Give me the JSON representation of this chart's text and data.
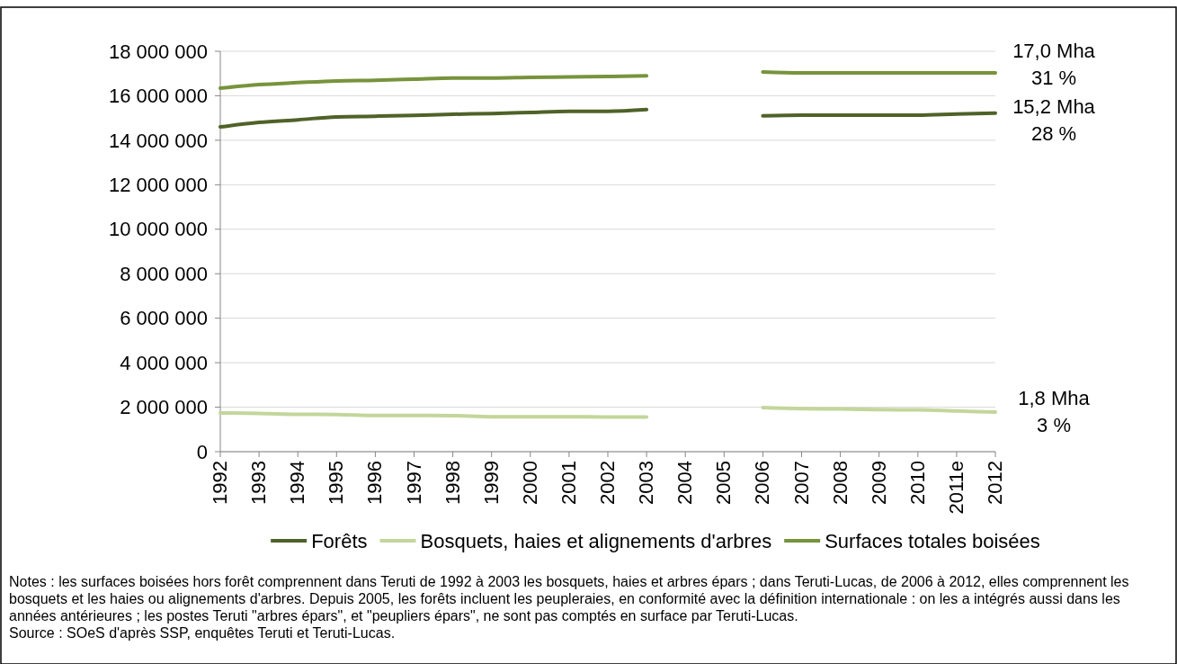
{
  "chart_data": {
    "type": "line",
    "categories": [
      "1992",
      "1993",
      "1994",
      "1995",
      "1996",
      "1997",
      "1998",
      "1999",
      "2000",
      "2001",
      "2002",
      "2003",
      "2004",
      "2005",
      "2006",
      "2007",
      "2008",
      "2009",
      "2010",
      "2011e",
      "2012"
    ],
    "series": [
      {
        "name": "Forêts",
        "color": "#4f6228",
        "values": [
          14600000,
          14800000,
          14920000,
          15050000,
          15080000,
          15120000,
          15170000,
          15200000,
          15250000,
          15300000,
          15300000,
          15380000,
          null,
          null,
          15100000,
          15130000,
          15130000,
          15130000,
          15130000,
          15180000,
          15220000
        ]
      },
      {
        "name": "Bosquets, haies et alignements d'arbres",
        "color": "#c3d69b",
        "values": [
          1740000,
          1720000,
          1680000,
          1670000,
          1630000,
          1630000,
          1620000,
          1570000,
          1570000,
          1570000,
          1560000,
          1560000,
          null,
          null,
          1980000,
          1930000,
          1920000,
          1890000,
          1880000,
          1830000,
          1780000
        ]
      },
      {
        "name": "Surfaces totales boisées",
        "color": "#77933c",
        "values": [
          16340000,
          16500000,
          16590000,
          16670000,
          16700000,
          16750000,
          16800000,
          16800000,
          16830000,
          16850000,
          16870000,
          16900000,
          null,
          null,
          17070000,
          17030000,
          17030000,
          17030000,
          17030000,
          17030000,
          17030000
        ]
      }
    ],
    "ylim": [
      0,
      18000000
    ],
    "yticks": [
      {
        "value": 0,
        "label": "0"
      },
      {
        "value": 2000000,
        "label": "2 000 000"
      },
      {
        "value": 4000000,
        "label": "4 000 000"
      },
      {
        "value": 6000000,
        "label": "6 000 000"
      },
      {
        "value": 8000000,
        "label": "8 000 000"
      },
      {
        "value": 10000000,
        "label": "10 000 000"
      },
      {
        "value": 12000000,
        "label": "12 000 000"
      },
      {
        "value": 14000000,
        "label": "14 000 000"
      },
      {
        "value": 16000000,
        "label": "16 000 000"
      },
      {
        "value": 18000000,
        "label": "18 000 000"
      }
    ],
    "grid": "y",
    "legend": "bottom",
    "marker": "none",
    "line_style": "solid",
    "annotations": [
      {
        "text": "17,0 Mha\n31 %",
        "x": "2012",
        "y": 17030000
      },
      {
        "text": "15,2 Mha\n28 %",
        "x": "2012",
        "y": 15220000
      },
      {
        "text": "1,8 Mha\n3 %",
        "x": "2012",
        "y": 1780000
      },
      "Notes : les surfaces boisées hors forêt comprennent dans Teruti de 1992 à 2003 les bosquets, haies et arbres épars ; dans Teruti-Lucas, de 2006 à 2012, elles comprennent les bosquets et les haies ou alignements d'arbres. Depuis 2005, les forêts incluent les peupleraies, en conformité avec la définition internationale : on les a intégrés aussi dans les années antérieures ; les postes Teruti \"arbres épars\", et \"peupliers épars\", ne sont pas comptés en surface par Teruti-Lucas.",
      "Source : SOeS d'après SSP, enquêtes Teruti et Teruti-Lucas."
    ]
  }
}
